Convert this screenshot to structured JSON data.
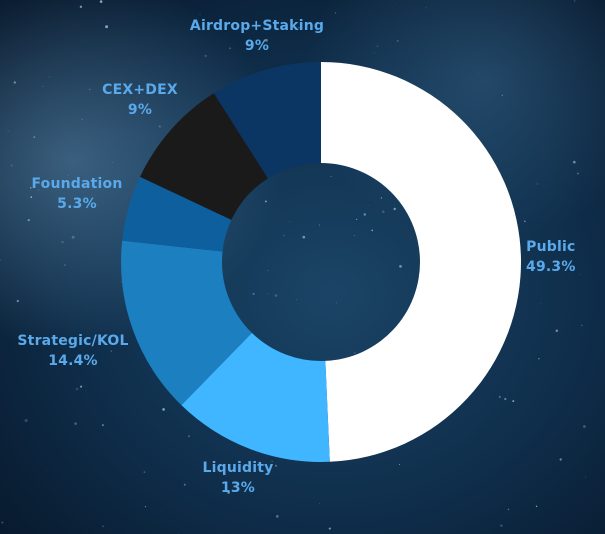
{
  "chart_data": {
    "type": "pie",
    "style": "donut",
    "categories": [
      "Public",
      "Liquidity",
      "Strategic/KOL",
      "Foundation",
      "CEX+DEX",
      "Airdrop+Staking"
    ],
    "values": [
      49.3,
      13,
      14.4,
      5.3,
      9,
      9
    ],
    "labels": [
      "49.3%",
      "13%",
      "14.4%",
      "5.3%",
      "9%",
      "9%"
    ],
    "colors": [
      "#ffffff",
      "#3fb6ff",
      "#1b7fc0",
      "#0e5f9e",
      "#1a1a1a",
      "#0b3663"
    ],
    "start_angle_deg": 0,
    "direction": "clockwise",
    "legend": "none",
    "label_color": "#5aa9ea",
    "background_color": "#0b2238"
  }
}
